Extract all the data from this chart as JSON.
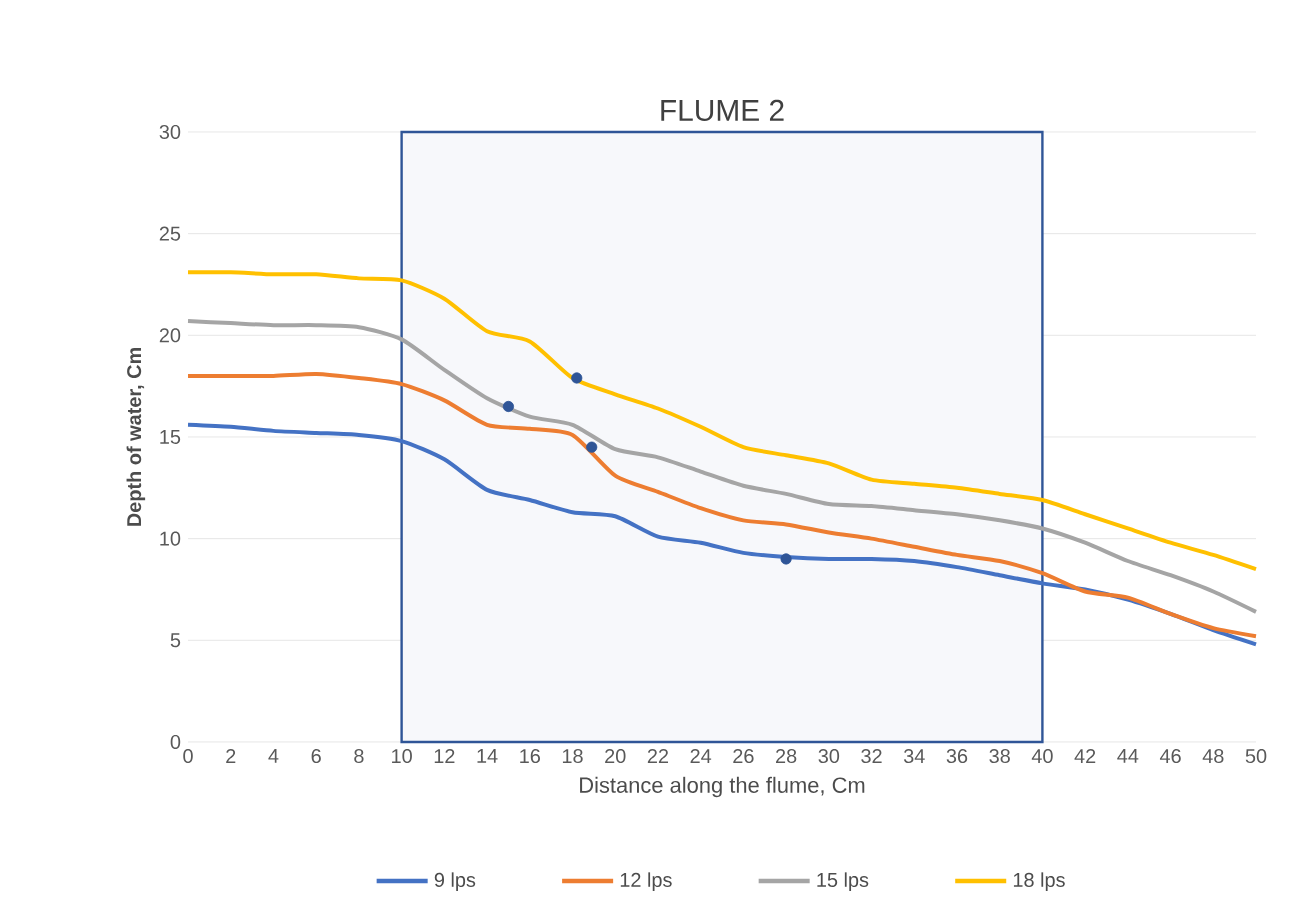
{
  "chart_data": {
    "type": "line",
    "title": "FLUME 2",
    "xlabel": "Distance along the flume, Cm",
    "ylabel": "Depth of water, Cm",
    "x": [
      0,
      2,
      4,
      6,
      8,
      10,
      12,
      14,
      16,
      18,
      20,
      22,
      24,
      26,
      28,
      30,
      32,
      34,
      36,
      38,
      40,
      42,
      44,
      46,
      48,
      50
    ],
    "series": [
      {
        "name": "9 lps",
        "color": "#4472c4",
        "values": [
          15.6,
          15.5,
          15.3,
          15.2,
          15.1,
          14.8,
          13.9,
          12.4,
          11.9,
          11.3,
          11.1,
          10.1,
          9.8,
          9.3,
          9.1,
          9.0,
          9.0,
          8.9,
          8.6,
          8.2,
          7.8,
          7.5,
          7.0,
          6.3,
          5.5,
          4.8
        ]
      },
      {
        "name": "12 lps",
        "color": "#ed7d31",
        "values": [
          18.0,
          18.0,
          18.0,
          18.1,
          17.9,
          17.6,
          16.8,
          15.6,
          15.4,
          15.1,
          13.1,
          12.3,
          11.5,
          10.9,
          10.7,
          10.3,
          10.0,
          9.6,
          9.2,
          8.9,
          8.3,
          7.4,
          7.1,
          6.3,
          5.6,
          5.2
        ]
      },
      {
        "name": "15 lps",
        "color": "#a5a5a5",
        "values": [
          20.7,
          20.6,
          20.5,
          20.5,
          20.4,
          19.8,
          18.3,
          16.9,
          16.0,
          15.6,
          14.4,
          14.0,
          13.3,
          12.6,
          12.2,
          11.7,
          11.6,
          11.4,
          11.2,
          10.9,
          10.5,
          9.8,
          8.9,
          8.2,
          7.4,
          6.4
        ]
      },
      {
        "name": "18 lps",
        "color": "#ffc000",
        "values": [
          23.1,
          23.1,
          23.0,
          23.0,
          22.8,
          22.7,
          21.8,
          20.2,
          19.7,
          17.9,
          17.1,
          16.4,
          15.5,
          14.5,
          14.1,
          13.7,
          12.9,
          12.7,
          12.5,
          12.2,
          11.9,
          11.2,
          10.5,
          9.8,
          9.2,
          8.5
        ]
      },
      {
        "type": "scatter",
        "marker": "circle",
        "color": "#2f5597",
        "x": [
          15,
          18.2,
          18.9,
          28
        ],
        "values": [
          16.5,
          17.9,
          14.5,
          9.0
        ]
      }
    ],
    "xlim": [
      0,
      50
    ],
    "xticks": [
      0,
      2,
      4,
      6,
      8,
      10,
      12,
      14,
      16,
      18,
      20,
      22,
      24,
      26,
      28,
      30,
      32,
      34,
      36,
      38,
      40,
      42,
      44,
      46,
      48,
      50
    ],
    "ylim": [
      0,
      30
    ],
    "yticks": [
      0,
      5,
      10,
      15,
      20,
      25,
      30
    ],
    "bands": [
      {
        "axis": "x",
        "from": 10,
        "to": 40,
        "color": "#2f5597"
      }
    ],
    "grid": "y",
    "legend": "bottom",
    "line_style": "solid"
  }
}
